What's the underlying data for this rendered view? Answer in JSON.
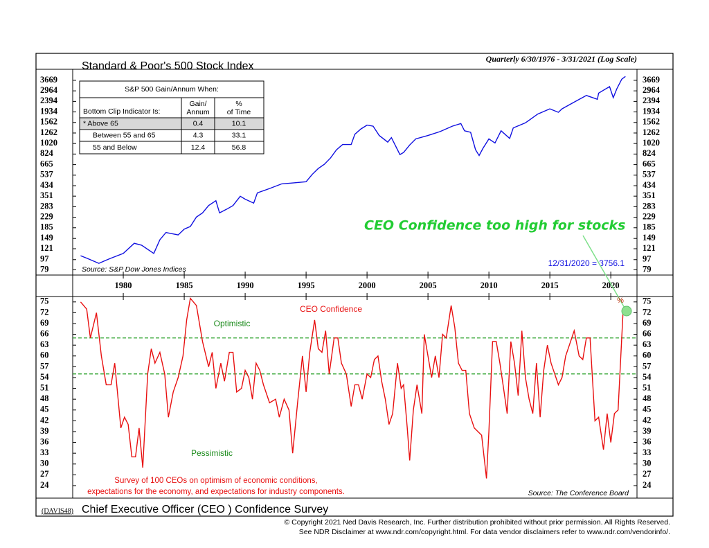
{
  "header": {
    "title": "Standard & Poor's 500 Stock Index",
    "subtitle": "Quarterly 6/30/1976 - 3/31/2021 (Log Scale)"
  },
  "chart_data": [
    {
      "type": "line",
      "log_scale": true,
      "color": "#1010e0",
      "xlim": [
        1975.85,
        2022.15
      ],
      "xticks": [
        1980,
        1985,
        1990,
        1995,
        2000,
        2005,
        2010,
        2015,
        2020
      ],
      "ylim": [
        71,
        4400
      ],
      "yticks": [
        3669,
        2964,
        2394,
        1934,
        1562,
        1262,
        1020,
        824,
        665,
        537,
        434,
        351,
        283,
        229,
        185,
        149,
        121,
        97,
        79
      ],
      "x": [
        1976.5,
        1977,
        1978,
        1978.6,
        1979,
        1980,
        1980.9,
        1981.5,
        1982.5,
        1983,
        1983.5,
        1984.5,
        1985,
        1985.5,
        1986,
        1986.5,
        1987,
        1987.6,
        1987.9,
        1988.5,
        1989,
        1989.6,
        1990,
        1990.7,
        1991,
        1992,
        1993,
        1994,
        1995,
        1995.5,
        1996,
        1996.5,
        1997,
        1997.5,
        1998,
        1998.7,
        1999,
        1999.5,
        2000,
        2000.5,
        2001,
        2001.7,
        2002,
        2002.7,
        2003,
        2003.5,
        2004,
        2005,
        2006,
        2007,
        2007.7,
        2008,
        2008.5,
        2008.9,
        2009.2,
        2009.5,
        2010,
        2010.5,
        2011,
        2011.7,
        2012,
        2013,
        2014,
        2015,
        2015.7,
        2016,
        2017,
        2018,
        2018.9,
        2019,
        2019.9,
        2020.2,
        2020.5,
        2020.9,
        2021.2
      ],
      "values": [
        105,
        100,
        90,
        96,
        100,
        110,
        135,
        130,
        110,
        145,
        168,
        160,
        180,
        190,
        230,
        250,
        290,
        320,
        250,
        270,
        290,
        350,
        330,
        305,
        375,
        410,
        450,
        460,
        470,
        545,
        615,
        670,
        760,
        900,
        1000,
        1000,
        1230,
        1370,
        1480,
        1450,
        1200,
        1050,
        1150,
        815,
        850,
        990,
        1120,
        1200,
        1300,
        1450,
        1530,
        1320,
        1280,
        900,
        800,
        920,
        1120,
        1030,
        1320,
        1130,
        1400,
        1550,
        1850,
        2060,
        1920,
        2060,
        2360,
        2700,
        2500,
        2830,
        3230,
        2580,
        3100,
        3756,
        3970
      ],
      "source": "Source: S&P Dow Jones Indices",
      "annotations": [
        "CEO Confidence too high for stocks",
        "12/31/2020 = 3756.1"
      ]
    },
    {
      "type": "line",
      "title": "CEO Confidence",
      "color": "#e81010",
      "xlim": [
        1975.85,
        2022.15
      ],
      "ylim": [
        21.3,
        76.5
      ],
      "yticks": [
        75,
        72,
        69,
        66,
        63,
        60,
        57,
        54,
        51,
        48,
        45,
        42,
        39,
        36,
        33,
        30,
        27,
        24
      ],
      "reference_lines": [
        65,
        55
      ],
      "reference_color": "#1a9a1a",
      "x": [
        1976.5,
        1977,
        1977.3,
        1977.8,
        1978.2,
        1978.6,
        1979,
        1979.3,
        1979.8,
        1980.1,
        1980.4,
        1980.7,
        1981,
        1981.3,
        1981.6,
        1982,
        1982.3,
        1982.6,
        1983,
        1983.4,
        1983.7,
        1984.1,
        1984.5,
        1984.9,
        1985.2,
        1985.5,
        1986,
        1986.5,
        1987,
        1987.3,
        1987.6,
        1988,
        1988.3,
        1988.7,
        1989,
        1989.3,
        1989.7,
        1990,
        1990.3,
        1990.6,
        1990.9,
        1991.2,
        1991.5,
        1992,
        1992.5,
        1992.8,
        1993.2,
        1993.6,
        1993.9,
        1994.3,
        1994.7,
        1995,
        1995.3,
        1995.7,
        1996,
        1996.3,
        1996.6,
        1996.9,
        1997.3,
        1997.6,
        1997.9,
        1998.3,
        1998.7,
        1999,
        1999.3,
        1999.6,
        2000,
        2000.3,
        2000.6,
        2000.9,
        2001.2,
        2001.5,
        2001.8,
        2002.1,
        2002.5,
        2002.8,
        2003,
        2003.3,
        2003.5,
        2003.8,
        2004.1,
        2004.5,
        2004.7,
        2005,
        2005.3,
        2005.6,
        2005.9,
        2006.2,
        2006.5,
        2006.9,
        2007.2,
        2007.5,
        2007.8,
        2008.1,
        2008.4,
        2008.8,
        2009.1,
        2009.4,
        2009.8,
        2010,
        2010.3,
        2010.6,
        2010.9,
        2011.2,
        2011.5,
        2011.8,
        2012.1,
        2012.4,
        2012.7,
        2013,
        2013.3,
        2013.6,
        2013.9,
        2014.2,
        2014.5,
        2014.8,
        2015.1,
        2015.4,
        2015.7,
        2016,
        2016.3,
        2016.6,
        2017,
        2017.4,
        2017.7,
        2018,
        2018.3,
        2018.7,
        2019,
        2019.4,
        2019.7,
        2020,
        2020.3,
        2020.6,
        2021
      ],
      "values": [
        75,
        73,
        65,
        72,
        60,
        52,
        52,
        58,
        40,
        43,
        41,
        32,
        32,
        40,
        29,
        55,
        62,
        58,
        61,
        55,
        43,
        50,
        54,
        60,
        70,
        76,
        74,
        64,
        57,
        61,
        51,
        58,
        53,
        61,
        61,
        50,
        51,
        56,
        54,
        48,
        58,
        56,
        52,
        47,
        48,
        43,
        48,
        45,
        33,
        47,
        60,
        50,
        61,
        70,
        62,
        61,
        67,
        55,
        65,
        65,
        58,
        55,
        46,
        52,
        52,
        48,
        55,
        54,
        59,
        60,
        53,
        48,
        41,
        44,
        58,
        51,
        52,
        40,
        31,
        45,
        52,
        44,
        66,
        60,
        54,
        60,
        54,
        66,
        65,
        74,
        68,
        58,
        56,
        56,
        44,
        40,
        39,
        38,
        26,
        39,
        64,
        64,
        58,
        51,
        44,
        64,
        58,
        49,
        67,
        54,
        48,
        44,
        58,
        43,
        56,
        63,
        58,
        55,
        52,
        54,
        60,
        63,
        67,
        60,
        59,
        65,
        65,
        42,
        43,
        34,
        44,
        36,
        44,
        45,
        72
      ],
      "annotations": [
        "Optimistic",
        "Pessimistic",
        "%"
      ],
      "note": [
        "Survey of 100 CEOs on optimism of economic conditions,",
        "expectations for the economy, and expectations for industry components."
      ],
      "source": "Source: The Conference Board"
    }
  ],
  "table": {
    "title": "S&P 500 Gain/Annum When:",
    "columns": [
      "Bottom Clip Indicator Is:",
      "Gain/",
      "Annum",
      "%",
      "of Time"
    ],
    "rows": [
      [
        "* Above 65",
        "0.4",
        "10.1"
      ],
      [
        "Between 55 and 65",
        "4.3",
        "33.1"
      ],
      [
        "55 and Below",
        "12.4",
        "56.8"
      ]
    ]
  },
  "footer": {
    "code": "(DAVIS48)",
    "title": "Chief Executive Officer (CEO ) Confidence Survey",
    "copyright": "© Copyright 2021 Ned Davis Research, Inc.  Further distribution prohibited without prior permission.  All Rights Reserved.",
    "disclaimer": "See NDR Disclaimer at www.ndr.com/copyright.html. For data vendor disclaimers refer to www.ndr.com/vendorinfo/."
  }
}
